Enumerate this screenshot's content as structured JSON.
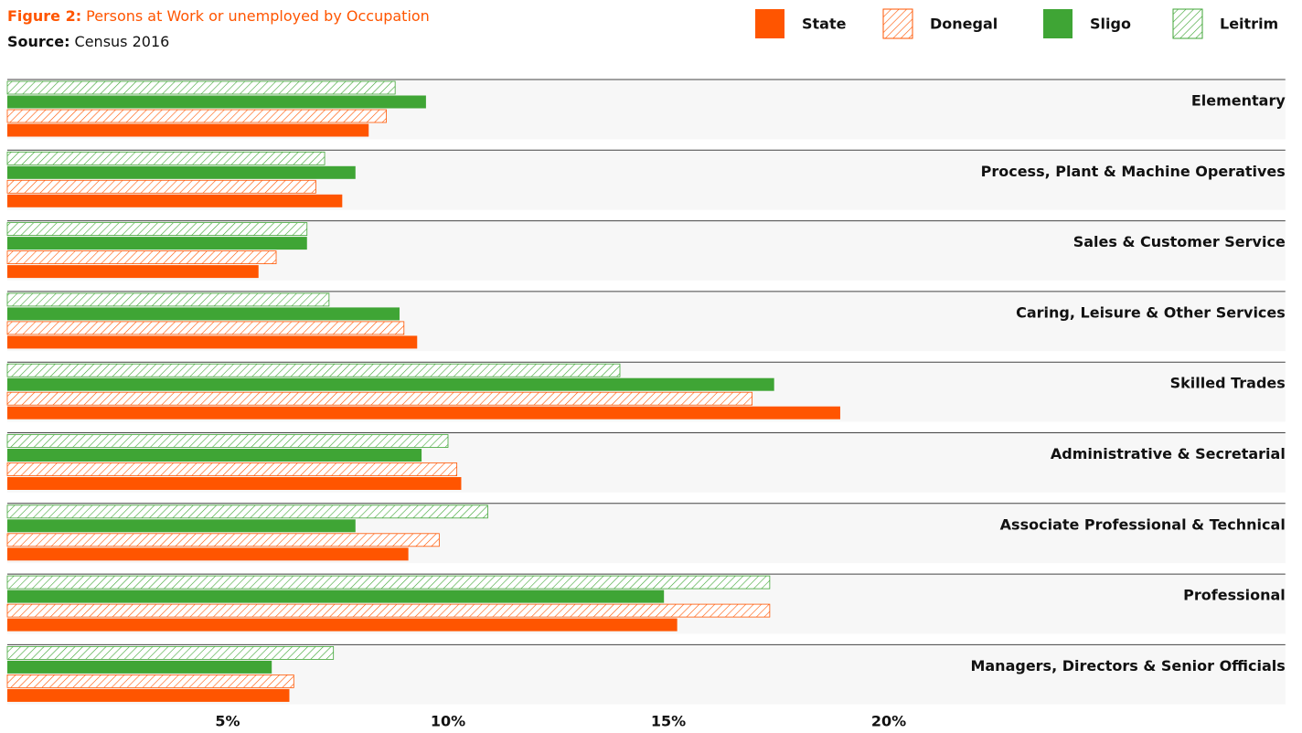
{
  "chart_data": {
    "type": "hbar",
    "title_label": "Figure 2:",
    "title": "Persons at Work or unemployed by Occupation",
    "source_label": "Source:",
    "source": "Census 2016",
    "categories": [
      "Elementary",
      "Process, Plant & Machine Operatives",
      "Sales & Customer Service",
      "Caring, Leisure & Other Services",
      "Skilled Trades",
      "Administrative & Secretarial",
      "Associate Professional & Technical",
      "Professional",
      "Managers, Directors & Senior Officials"
    ],
    "series": [
      {
        "name": "State",
        "color": "#ff5500",
        "hatch": false,
        "values": [
          8.2,
          7.6,
          5.7,
          9.3,
          18.9,
          10.3,
          9.1,
          15.2,
          6.4
        ]
      },
      {
        "name": "Donegal",
        "color": "#ff5500",
        "hatch": true,
        "values": [
          8.6,
          7.0,
          6.1,
          9.0,
          16.9,
          10.2,
          9.8,
          17.3,
          6.5
        ]
      },
      {
        "name": "Sligo",
        "color": "#3fa535",
        "hatch": false,
        "values": [
          9.5,
          7.9,
          6.8,
          8.9,
          17.4,
          9.4,
          7.9,
          14.9,
          6.0
        ]
      },
      {
        "name": "Leitrim",
        "color": "#3fa535",
        "hatch": true,
        "values": [
          8.8,
          7.2,
          6.8,
          7.3,
          13.9,
          10.0,
          10.9,
          17.3,
          7.4
        ]
      }
    ],
    "xlim": [
      0,
      29
    ],
    "xticks": [
      {
        "value": 5,
        "label": "5%"
      },
      {
        "value": 10,
        "label": "10%"
      },
      {
        "value": 15,
        "label": "15%"
      },
      {
        "value": 20,
        "label": "20%"
      }
    ],
    "legend": "top-right"
  }
}
